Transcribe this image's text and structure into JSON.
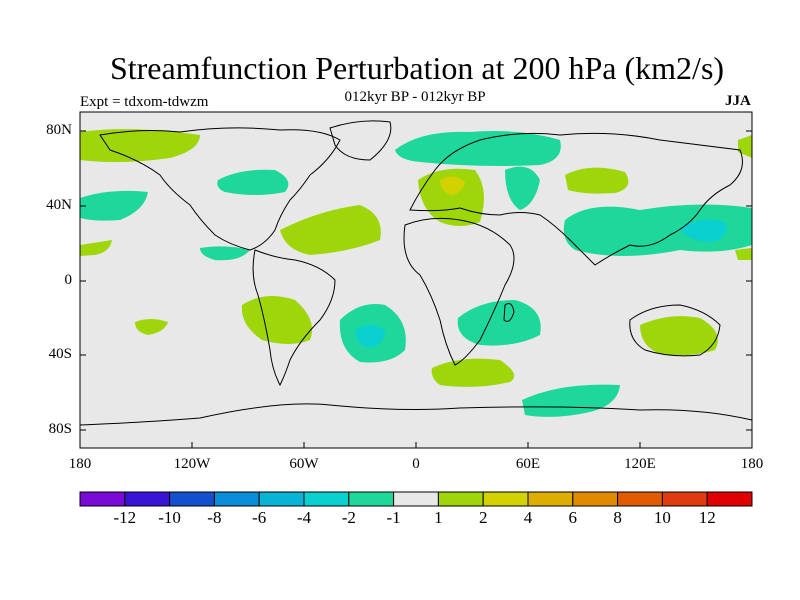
{
  "title": "Streamfunction Perturbation at 200 hPa (km2/s)",
  "subtitle": "012kyr BP - 012kyr BP",
  "experiment": "Expt = tdxom-tdwzm",
  "season": "JJA",
  "lat_labels": [
    "80N",
    "40N",
    "0",
    "40S",
    "80S"
  ],
  "lon_labels": [
    "180",
    "120W",
    "60W",
    "0",
    "60E",
    "120E",
    "180"
  ],
  "colorbar": {
    "labels": [
      "-12",
      "-10",
      "-8",
      "-6",
      "-4",
      "-2",
      "-1",
      "1",
      "2",
      "4",
      "6",
      "8",
      "10",
      "12"
    ],
    "colors": [
      "#7a0ad6",
      "#3a14d4",
      "#1450cc",
      "#0a8cd8",
      "#08b4d6",
      "#0ad0d0",
      "#1ed79a",
      "#e8e8e8",
      "#9ed60a",
      "#d2d200",
      "#dcae00",
      "#e08a00",
      "#e05a00",
      "#e03a10",
      "#e00000"
    ]
  },
  "map_colors": {
    "background": "#e8e8e8",
    "coast": "#000000"
  }
}
